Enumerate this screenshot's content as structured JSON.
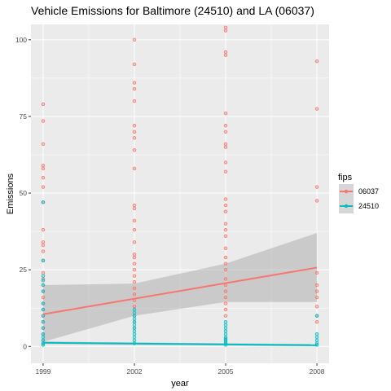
{
  "chart_data": {
    "type": "scatter",
    "title": "Vehicle Emissions for Baltimore (24510) and LA (06037)",
    "xlabel": "year",
    "ylabel": "Emissions",
    "x_ticks": [
      1999,
      2002,
      2005,
      2008
    ],
    "y_ticks": [
      0,
      25,
      50,
      75,
      100
    ],
    "xlim": [
      1998.6,
      2008.4
    ],
    "ylim": [
      -5.5,
      105
    ],
    "grid": true,
    "legend": {
      "title": "fips",
      "placement": "right"
    },
    "series": [
      {
        "name": "06037",
        "color": "#F8766D",
        "points": [
          [
            1999,
            79
          ],
          [
            1999,
            73.5
          ],
          [
            1999,
            66
          ],
          [
            1999,
            59
          ],
          [
            1999,
            58
          ],
          [
            1999,
            55
          ],
          [
            1999,
            52
          ],
          [
            1999,
            47
          ],
          [
            1999,
            38
          ],
          [
            1999,
            34
          ],
          [
            1999,
            33
          ],
          [
            1999,
            31
          ],
          [
            1999,
            28
          ],
          [
            1999,
            24
          ],
          [
            1999,
            22
          ],
          [
            1999,
            20
          ],
          [
            1999,
            18
          ],
          [
            1999,
            16
          ],
          [
            1999,
            14
          ],
          [
            1999,
            12
          ],
          [
            1999,
            10
          ],
          [
            1999,
            8
          ],
          [
            1999,
            6
          ],
          [
            1999,
            4
          ],
          [
            1999,
            2
          ],
          [
            1999,
            1
          ],
          [
            2002,
            100
          ],
          [
            2002,
            92
          ],
          [
            2002,
            86
          ],
          [
            2002,
            84
          ],
          [
            2002,
            80
          ],
          [
            2002,
            72
          ],
          [
            2002,
            70
          ],
          [
            2002,
            68
          ],
          [
            2002,
            64
          ],
          [
            2002,
            58
          ],
          [
            2002,
            46
          ],
          [
            2002,
            45
          ],
          [
            2002,
            41
          ],
          [
            2002,
            38
          ],
          [
            2002,
            34
          ],
          [
            2002,
            30
          ],
          [
            2002,
            29
          ],
          [
            2002,
            27
          ],
          [
            2002,
            25
          ],
          [
            2002,
            23
          ],
          [
            2002,
            21
          ],
          [
            2002,
            19
          ],
          [
            2002,
            17
          ],
          [
            2002,
            15
          ],
          [
            2002,
            13
          ],
          [
            2002,
            10
          ],
          [
            2002,
            8
          ],
          [
            2002,
            6
          ],
          [
            2005,
            104
          ],
          [
            2005,
            103
          ],
          [
            2005,
            96
          ],
          [
            2005,
            95
          ],
          [
            2005,
            76
          ],
          [
            2005,
            72
          ],
          [
            2005,
            70
          ],
          [
            2005,
            66
          ],
          [
            2005,
            65
          ],
          [
            2005,
            60
          ],
          [
            2005,
            57
          ],
          [
            2005,
            48
          ],
          [
            2005,
            46
          ],
          [
            2005,
            44
          ],
          [
            2005,
            40
          ],
          [
            2005,
            38
          ],
          [
            2005,
            36
          ],
          [
            2005,
            32
          ],
          [
            2005,
            29
          ],
          [
            2005,
            27
          ],
          [
            2005,
            25
          ],
          [
            2005,
            22
          ],
          [
            2005,
            20
          ],
          [
            2005,
            18
          ],
          [
            2005,
            16
          ],
          [
            2005,
            14
          ],
          [
            2005,
            12
          ],
          [
            2005,
            10
          ],
          [
            2008,
            93
          ],
          [
            2008,
            77.5
          ],
          [
            2008,
            52
          ],
          [
            2008,
            47.5
          ],
          [
            2008,
            24
          ],
          [
            2008,
            20
          ],
          [
            2008,
            18
          ],
          [
            2008,
            16
          ],
          [
            2008,
            13
          ],
          [
            2008,
            10
          ],
          [
            2008,
            8
          ]
        ],
        "fit": {
          "start": [
            1999,
            10.5
          ],
          "end": [
            2008,
            25.7
          ]
        },
        "ci": {
          "upper": [
            [
              1999,
              20
            ],
            [
              2002,
              20.5
            ],
            [
              2005,
              27
            ],
            [
              2008,
              37
            ]
          ],
          "lower": [
            [
              1999,
              1.5
            ],
            [
              2002,
              10
            ],
            [
              2005,
              14.5
            ],
            [
              2008,
              14.5
            ]
          ]
        }
      },
      {
        "name": "24510",
        "color": "#00BFC4",
        "points": [
          [
            1999,
            47
          ],
          [
            1999,
            28
          ],
          [
            1999,
            23
          ],
          [
            1999,
            21.5
          ],
          [
            1999,
            20
          ],
          [
            1999,
            18
          ],
          [
            1999,
            14
          ],
          [
            1999,
            12
          ],
          [
            1999,
            10
          ],
          [
            1999,
            8
          ],
          [
            1999,
            6
          ],
          [
            1999,
            4
          ],
          [
            1999,
            3
          ],
          [
            1999,
            2
          ],
          [
            1999,
            1
          ],
          [
            1999,
            0.5
          ],
          [
            2002,
            12
          ],
          [
            2002,
            11
          ],
          [
            2002,
            10
          ],
          [
            2002,
            9
          ],
          [
            2002,
            8
          ],
          [
            2002,
            7
          ],
          [
            2002,
            6
          ],
          [
            2002,
            5
          ],
          [
            2002,
            4
          ],
          [
            2002,
            3
          ],
          [
            2002,
            2
          ],
          [
            2002,
            1
          ],
          [
            2005,
            8
          ],
          [
            2005,
            7
          ],
          [
            2005,
            6
          ],
          [
            2005,
            5
          ],
          [
            2005,
            4
          ],
          [
            2005,
            3
          ],
          [
            2005,
            2.5
          ],
          [
            2005,
            2
          ],
          [
            2005,
            1.5
          ],
          [
            2005,
            1
          ],
          [
            2005,
            0.5
          ],
          [
            2008,
            10
          ],
          [
            2008,
            4
          ],
          [
            2008,
            3
          ],
          [
            2008,
            2
          ],
          [
            2008,
            1
          ],
          [
            2008,
            0.5
          ]
        ],
        "fit": {
          "start": [
            1999,
            1.2
          ],
          "end": [
            2008,
            0.4
          ]
        },
        "ci": {
          "upper": [
            [
              1999,
              1.6
            ],
            [
              2008,
              0.8
            ]
          ],
          "lower": [
            [
              1999,
              0.8
            ],
            [
              2008,
              0.0
            ]
          ]
        }
      }
    ]
  }
}
